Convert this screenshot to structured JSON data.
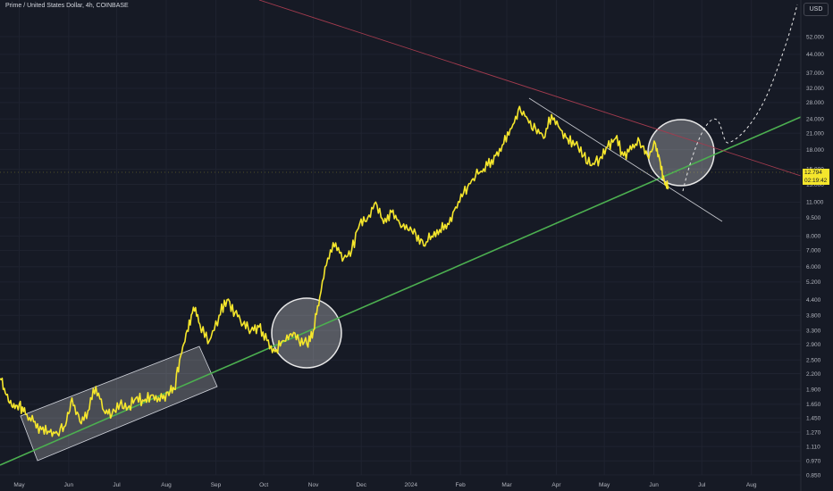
{
  "header": {
    "title": "Prime / United States Dollar, 4h, COINBASE",
    "currency": "USD"
  },
  "price_label": {
    "price": "12.794",
    "countdown": "02:19:42"
  },
  "colors": {
    "background": "#161a25",
    "price_line": "#f5e62c",
    "support_line": "#4caf50",
    "resistance_line": "#a33b4e",
    "channel_fill": "rgba(255,255,255,0.22)",
    "circle_fill": "rgba(255,255,255,0.28)"
  },
  "chart_data": {
    "type": "line",
    "title": "Prime / United States Dollar, 4h, COINBASE",
    "xlabel": "",
    "ylabel": "",
    "scale": "log",
    "ylim": [
      0.85,
      62
    ],
    "y_ticks": [
      "0.850",
      "0.970",
      "1.110",
      "1.270",
      "1.450",
      "1.650",
      "1.900",
      "2.200",
      "2.500",
      "2.900",
      "3.300",
      "3.800",
      "4.400",
      "5.200",
      "6.000",
      "7.000",
      "8.000",
      "9.500",
      "11.000",
      "13.000",
      "15.000",
      "18.000",
      "21.000",
      "24.000",
      "28.000",
      "32.000",
      "37.000",
      "44.000",
      "52.000"
    ],
    "x_ticks": [
      "May",
      "Jun",
      "Jul",
      "Aug",
      "Sep",
      "Oct",
      "Nov",
      "Dec",
      "2024",
      "Feb",
      "Mar",
      "Apr",
      "May",
      "Jun",
      "Jul",
      "Aug"
    ],
    "series": [
      {
        "x": [
          "2023-04-19",
          "2023-04-23",
          "2023-04-27",
          "2023-05-01",
          "2023-05-05",
          "2023-05-10",
          "2023-05-15",
          "2023-05-20",
          "2023-05-25",
          "2023-05-30",
          "2023-06-03",
          "2023-06-08",
          "2023-06-13",
          "2023-06-18",
          "2023-06-23",
          "2023-06-28",
          "2023-07-03",
          "2023-07-08",
          "2023-07-13",
          "2023-07-18",
          "2023-07-23",
          "2023-07-28",
          "2023-08-02",
          "2023-08-06",
          "2023-08-10",
          "2023-08-14",
          "2023-08-18",
          "2023-08-22",
          "2023-08-28",
          "2023-09-03",
          "2023-09-08",
          "2023-09-13",
          "2023-09-18",
          "2023-09-23",
          "2023-09-28",
          "2023-10-03",
          "2023-10-08",
          "2023-10-13",
          "2023-10-18",
          "2023-10-23",
          "2023-10-28",
          "2023-11-01",
          "2023-11-05",
          "2023-11-10",
          "2023-11-15",
          "2023-11-20",
          "2023-11-25",
          "2023-11-30",
          "2023-12-05",
          "2023-12-10",
          "2023-12-15",
          "2023-12-20",
          "2023-12-25",
          "2023-12-30",
          "2024-01-04",
          "2024-01-09",
          "2024-01-14",
          "2024-01-19",
          "2024-01-24",
          "2024-01-29",
          "2024-02-03",
          "2024-02-08",
          "2024-02-13",
          "2024-02-18",
          "2024-02-23",
          "2024-02-28",
          "2024-03-04",
          "2024-03-09",
          "2024-03-14",
          "2024-03-19",
          "2024-03-24",
          "2024-03-29",
          "2024-04-03",
          "2024-04-08",
          "2024-04-13",
          "2024-04-18",
          "2024-04-23",
          "2024-04-28",
          "2024-05-03",
          "2024-05-08",
          "2024-05-13",
          "2024-05-18",
          "2024-05-23",
          "2024-05-28",
          "2024-06-02",
          "2024-06-05",
          "2024-06-08",
          "2024-06-10"
        ],
        "values": [
          2.1,
          1.8,
          1.6,
          1.65,
          1.5,
          1.4,
          1.3,
          1.27,
          1.25,
          1.35,
          1.75,
          1.4,
          1.55,
          1.95,
          1.55,
          1.5,
          1.65,
          1.6,
          1.75,
          1.7,
          1.8,
          1.7,
          1.85,
          1.9,
          2.6,
          3.3,
          4.1,
          3.5,
          3.0,
          3.8,
          4.4,
          3.9,
          3.5,
          3.3,
          3.4,
          3.0,
          2.7,
          3.0,
          3.2,
          3.0,
          2.9,
          3.3,
          4.5,
          6.5,
          7.5,
          6.5,
          7.0,
          9.0,
          9.5,
          11.0,
          9.0,
          10.0,
          9.0,
          8.5,
          8.2,
          7.3,
          8.0,
          8.5,
          9.0,
          10.5,
          12.0,
          13.5,
          14.5,
          15.5,
          17.0,
          19.0,
          22.0,
          27.0,
          24.0,
          22.0,
          20.0,
          25.0,
          22.0,
          20.0,
          19.0,
          17.0,
          15.5,
          16.5,
          18.5,
          20.0,
          17.0,
          18.0,
          19.5,
          17.0,
          19.0,
          16.0,
          13.0,
          12.79
        ]
      }
    ],
    "annotations": []
  }
}
